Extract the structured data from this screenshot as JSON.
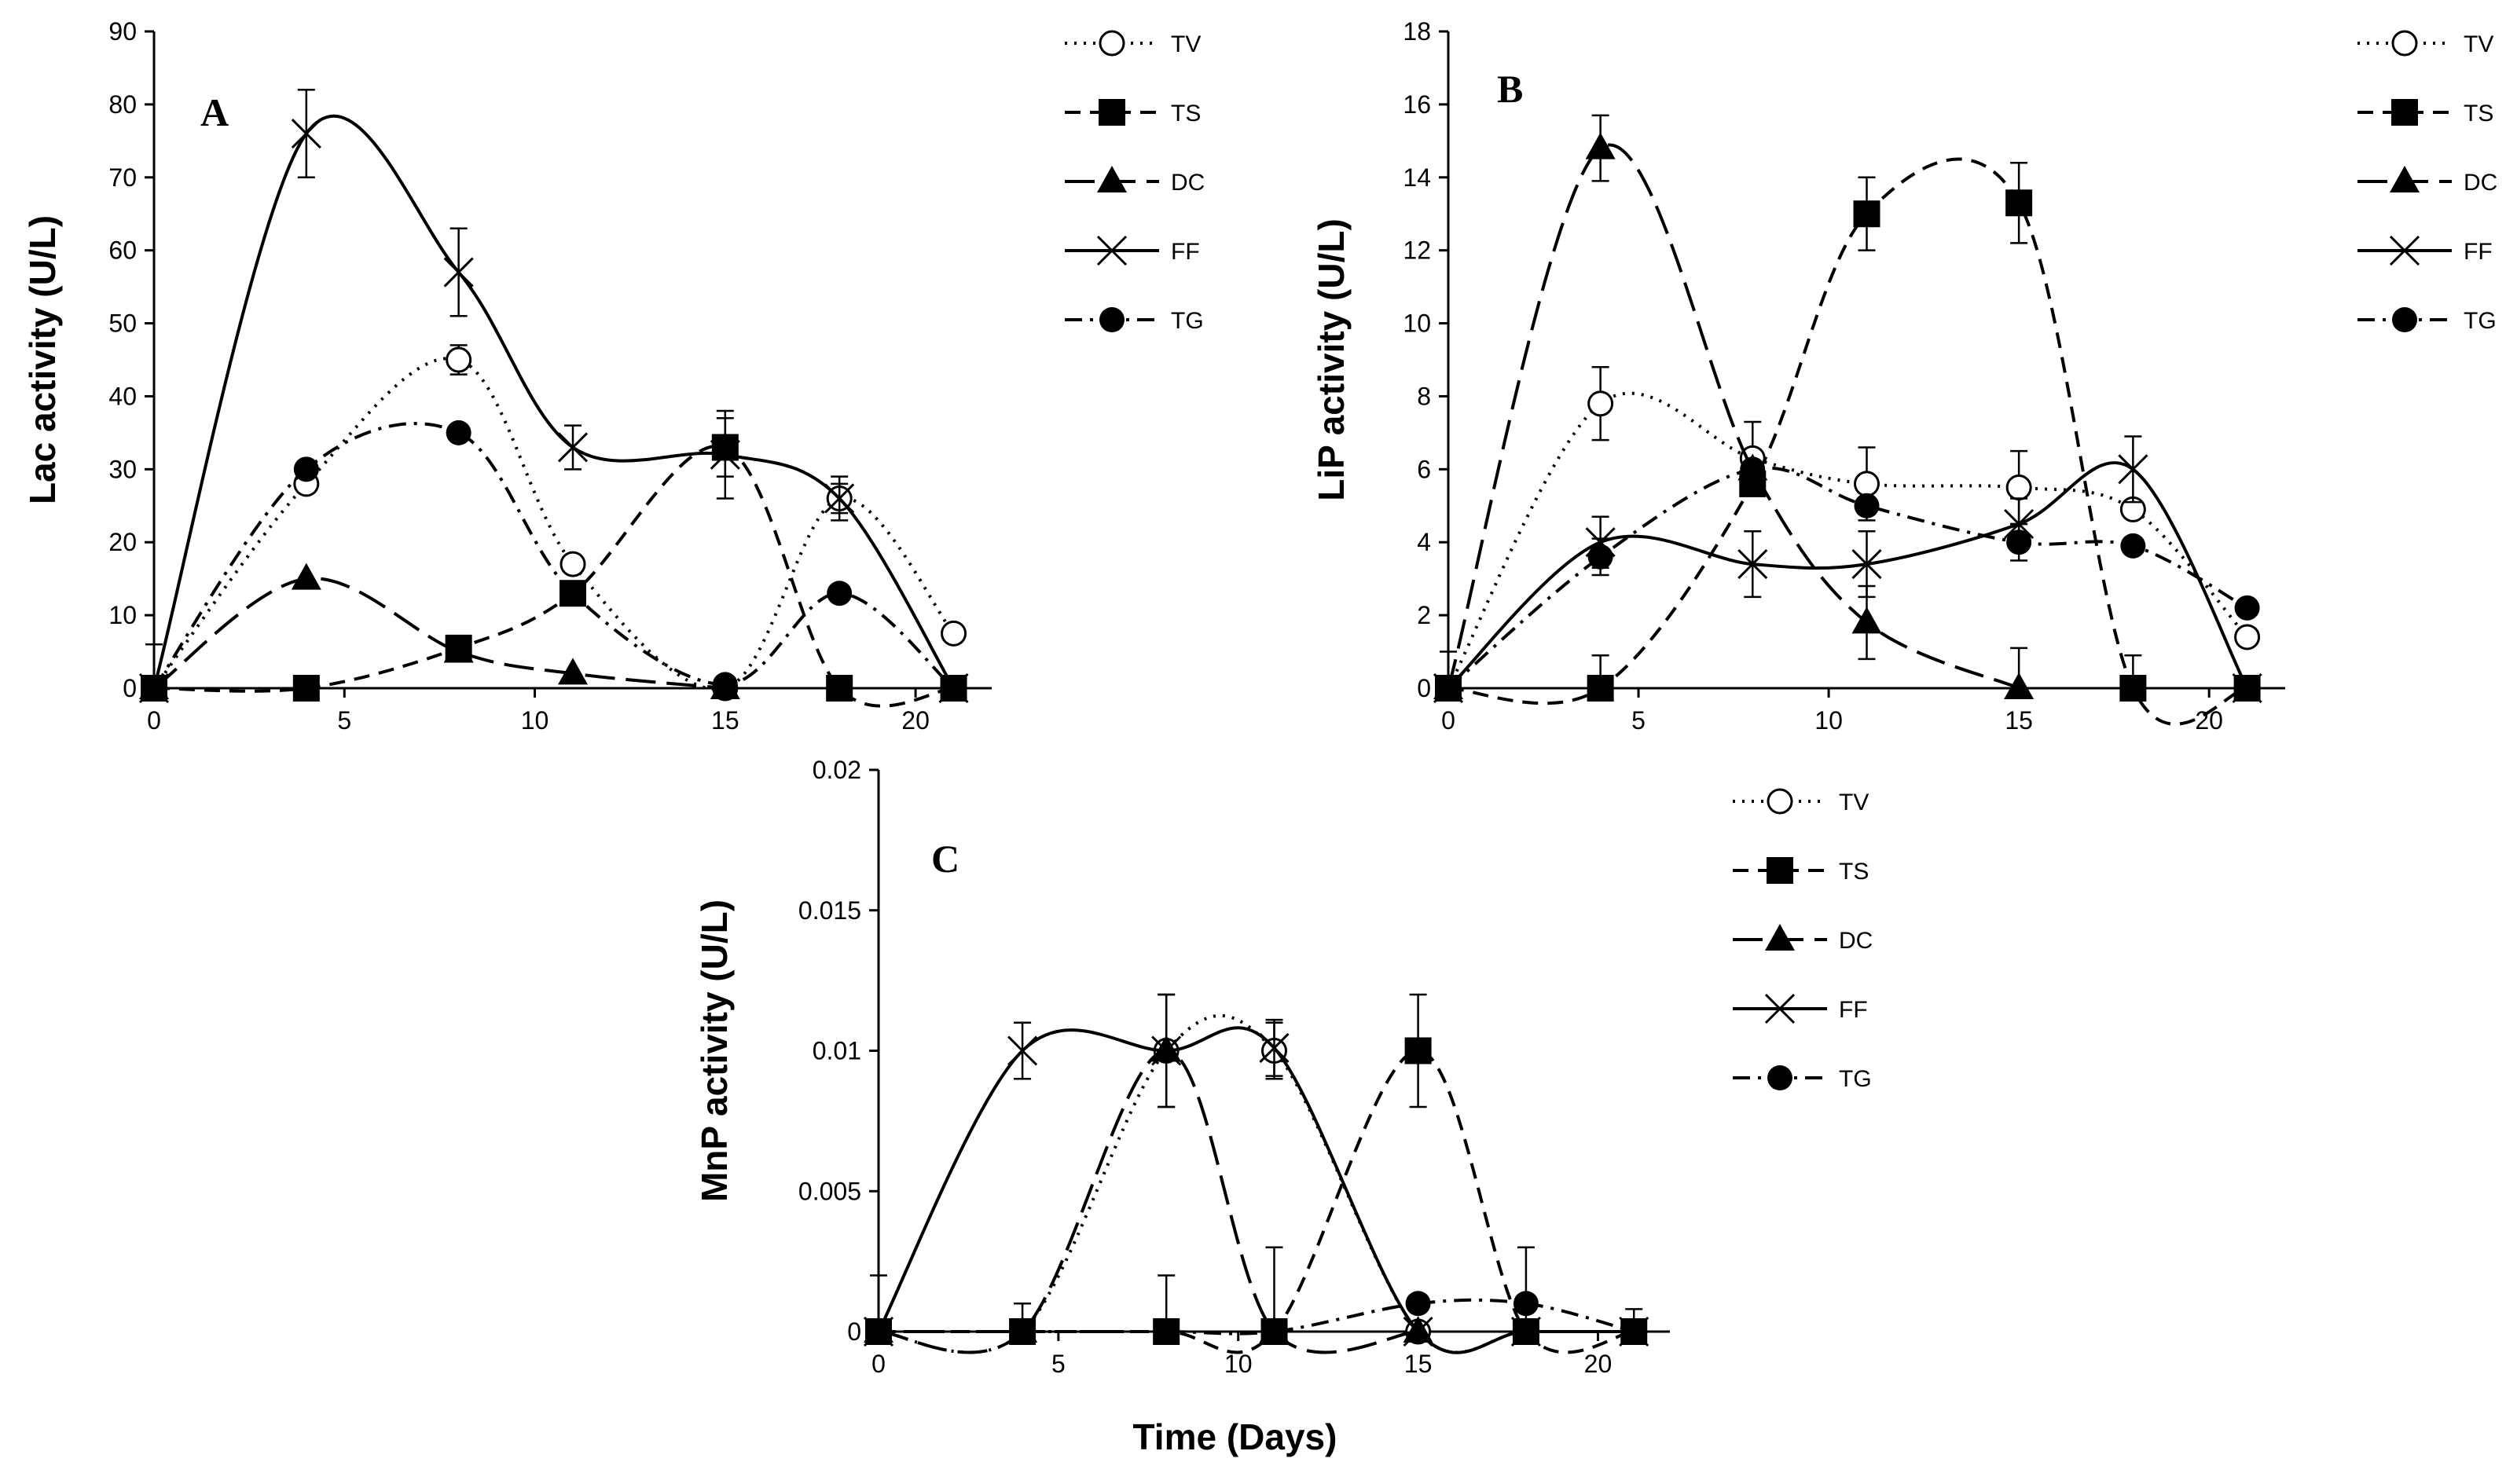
{
  "chart_data": [
    {
      "panel_label": "A",
      "type": "line",
      "ylabel": "Lac activity  (U/L)",
      "xlabel": "",
      "xlim": [
        0,
        22
      ],
      "ylim": [
        0,
        90
      ],
      "xticks": [
        "0",
        "5",
        "10",
        "15",
        "20"
      ],
      "yticks": [
        "0",
        "10",
        "20",
        "30",
        "40",
        "50",
        "60",
        "70",
        "80",
        "90"
      ],
      "legend": [
        "TV",
        "TS",
        "DC",
        "FF",
        "TG"
      ],
      "series": [
        {
          "name": "TV",
          "x": [
            0,
            4,
            8,
            11,
            15,
            18,
            21
          ],
          "y": [
            0,
            28,
            45,
            17,
            0,
            26,
            7.5
          ],
          "err": [
            0,
            1,
            2,
            1,
            0,
            2,
            0
          ]
        },
        {
          "name": "TS",
          "x": [
            0,
            4,
            8,
            11,
            15,
            18,
            21
          ],
          "y": [
            0,
            0,
            5.5,
            13,
            33,
            0,
            0
          ],
          "err": [
            0,
            0,
            0,
            0,
            4,
            0,
            0
          ]
        },
        {
          "name": "DC",
          "x": [
            0,
            4,
            8,
            11,
            15
          ],
          "y": [
            0,
            15,
            5,
            2,
            0
          ],
          "err": [
            0,
            0,
            0,
            0,
            0
          ]
        },
        {
          "name": "FF",
          "x": [
            0,
            4,
            8,
            11,
            15,
            18,
            21
          ],
          "y": [
            0,
            76,
            57,
            33,
            32,
            26,
            0
          ],
          "err": [
            6,
            6,
            6,
            3,
            6,
            3,
            0
          ]
        },
        {
          "name": "TG",
          "x": [
            0,
            4,
            8,
            11,
            15,
            18,
            21
          ],
          "y": [
            0,
            30,
            35,
            13,
            0.5,
            13,
            0
          ],
          "err": [
            0,
            0,
            0,
            0,
            0,
            0,
            0
          ]
        }
      ]
    },
    {
      "panel_label": "B",
      "type": "line",
      "ylabel": "LiP activity  (U/L)",
      "xlabel": "",
      "xlim": [
        0,
        22
      ],
      "ylim": [
        0,
        18
      ],
      "xticks": [
        "0",
        "5",
        "10",
        "15",
        "20"
      ],
      "yticks": [
        "0",
        "2",
        "4",
        "6",
        "8",
        "10",
        "12",
        "14",
        "16",
        "18"
      ],
      "legend": [
        "TV",
        "TS",
        "DC",
        "FF",
        "TG"
      ],
      "series": [
        {
          "name": "TV",
          "x": [
            0,
            4,
            8,
            11,
            15,
            18,
            21
          ],
          "y": [
            0,
            7.8,
            6.3,
            5.6,
            5.5,
            4.9,
            1.4
          ],
          "err": [
            0,
            1,
            1,
            1,
            1,
            0,
            0
          ]
        },
        {
          "name": "TS",
          "x": [
            0,
            4,
            8,
            11,
            15,
            18,
            21
          ],
          "y": [
            0,
            0,
            5.6,
            13,
            13.3,
            0,
            0
          ],
          "err": [
            0,
            0.9,
            0,
            1,
            1.1,
            0.9,
            0
          ]
        },
        {
          "name": "DC",
          "x": [
            0,
            4,
            8,
            11,
            15
          ],
          "y": [
            0,
            14.8,
            6,
            1.8,
            0
          ],
          "err": [
            0,
            0.9,
            0,
            1,
            1.1
          ]
        },
        {
          "name": "FF",
          "x": [
            0,
            4,
            8,
            11,
            15,
            18,
            21
          ],
          "y": [
            0,
            4,
            3.4,
            3.4,
            4.5,
            6,
            0
          ],
          "err": [
            1,
            0.7,
            0.9,
            0.9,
            0.7,
            0.9,
            0
          ]
        },
        {
          "name": "TG",
          "x": [
            0,
            4,
            8,
            11,
            15,
            18,
            21
          ],
          "y": [
            0,
            3.6,
            6,
            5,
            4,
            3.9,
            2.2
          ],
          "err": [
            0,
            0.5,
            0,
            0,
            0.5,
            0,
            0
          ]
        }
      ]
    },
    {
      "panel_label": "C",
      "type": "line",
      "ylabel": "MnP activity  (U/L)",
      "xlabel": "Time (Days)",
      "xlim": [
        0,
        22
      ],
      "ylim": [
        0,
        0.02
      ],
      "xticks": [
        "0",
        "5",
        "10",
        "15",
        "20"
      ],
      "yticks": [
        "0",
        "0.005",
        "0.01",
        "0.015",
        "0.02"
      ],
      "legend": [
        "TV",
        "TS",
        "DC",
        "FF",
        "TG"
      ],
      "series": [
        {
          "name": "TV",
          "x": [
            0,
            4,
            8,
            11,
            15,
            18,
            21
          ],
          "y": [
            0,
            0,
            0.01,
            0.01,
            0,
            0,
            0
          ],
          "err": [
            0,
            0,
            0,
            0.001,
            0,
            0,
            0
          ]
        },
        {
          "name": "TS",
          "x": [
            0,
            4,
            8,
            11,
            15,
            18,
            21
          ],
          "y": [
            0,
            0,
            0,
            0,
            0.01,
            0,
            0
          ],
          "err": [
            0.002,
            0.001,
            0.002,
            0.003,
            0.002,
            0.003,
            0
          ]
        },
        {
          "name": "DC",
          "x": [
            0,
            4,
            8,
            11,
            15
          ],
          "y": [
            0,
            0,
            0.01,
            0,
            0
          ],
          "err": [
            0,
            0,
            0.002,
            0,
            0
          ]
        },
        {
          "name": "FF",
          "x": [
            0,
            4,
            8,
            11,
            15,
            18,
            21
          ],
          "y": [
            0,
            0.01,
            0.01,
            0.0101,
            0,
            0,
            0
          ],
          "err": [
            0,
            0.001,
            0.002,
            0.001,
            0,
            0,
            0
          ]
        },
        {
          "name": "TG",
          "x": [
            0,
            4,
            8,
            11,
            15,
            18,
            21
          ],
          "y": [
            0,
            0,
            0,
            0,
            0.001,
            0.001,
            0
          ],
          "err": [
            0,
            0,
            0,
            0,
            0,
            0,
            0.0008
          ]
        }
      ]
    }
  ]
}
